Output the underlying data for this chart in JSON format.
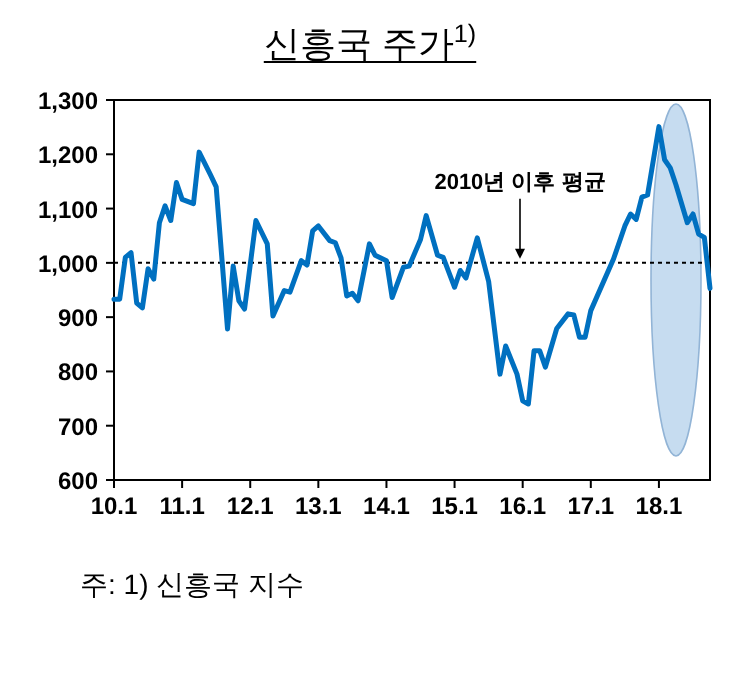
{
  "chart_data": {
    "type": "line",
    "title": "신흥국 주가$^{1)}$",
    "x": [
      "2010-01",
      "2010-02",
      "2010-03",
      "2010-04",
      "2010-05",
      "2010-06",
      "2010-07",
      "2010-08",
      "2010-09",
      "2010-10",
      "2010-11",
      "2010-12",
      "2011-01",
      "2011-03",
      "2011-04",
      "2011-06",
      "2011-07",
      "2011-09",
      "2011-10",
      "2011-11",
      "2011-12",
      "2012-02",
      "2012-04",
      "2012-05",
      "2012-07",
      "2012-08",
      "2012-10",
      "2012-11",
      "2012-12",
      "2013-01",
      "2013-03",
      "2013-04",
      "2013-05",
      "2013-06",
      "2013-07",
      "2013-08",
      "2013-10",
      "2013-11",
      "2014-01",
      "2014-02",
      "2014-04",
      "2014-05",
      "2014-07",
      "2014-08",
      "2014-10",
      "2014-11",
      "2015-01",
      "2015-02",
      "2015-03",
      "2015-05",
      "2015-07",
      "2015-09",
      "2015-10",
      "2015-12",
      "2016-01",
      "2016-02",
      "2016-03",
      "2016-04",
      "2016-05",
      "2016-07",
      "2016-09",
      "2016-10",
      "2016-11",
      "2016-12",
      "2017-01",
      "2017-05",
      "2017-07",
      "2017-08",
      "2017-09",
      "2017-10",
      "2017-11",
      "2018-01",
      "2018-02",
      "2018-03",
      "2018-04",
      "2018-06",
      "2018-07",
      "2018-08",
      "2018-09",
      "2018-10"
    ],
    "series": [
      {
        "color": "#0070c0",
        "values": [
          933,
          933,
          1010,
          1019,
          926,
          917,
          989,
          970,
          1074,
          1105,
          1078,
          1148,
          1117,
          1109,
          1204,
          1162,
          1140,
          878,
          994,
          930,
          915,
          1078,
          1035,
          902,
          949,
          946,
          1004,
          996,
          1059,
          1068,
          1041,
          1037,
          1009,
          939,
          944,
          930,
          1035,
          1014,
          1004,
          936,
          992,
          994,
          1043,
          1087,
          1014,
          1010,
          955,
          986,
          972,
          1046,
          966,
          795,
          847,
          795,
          746,
          740,
          838,
          838,
          808,
          879,
          906,
          904,
          863,
          863,
          912,
          1007,
          1068,
          1090,
          1080,
          1121,
          1125,
          1251,
          1190,
          1175,
          1144,
          1074,
          1090,
          1053,
          1047,
          953
        ]
      }
    ],
    "xlim": [
      "2010-01",
      "2018-10"
    ],
    "xticks": [
      {
        "value": "2010-01",
        "label": "10.1"
      },
      {
        "value": "2011-01",
        "label": "11.1"
      },
      {
        "value": "2012-01",
        "label": "12.1"
      },
      {
        "value": "2013-01",
        "label": "13.1"
      },
      {
        "value": "2014-01",
        "label": "14.1"
      },
      {
        "value": "2015-01",
        "label": "15.1"
      },
      {
        "value": "2016-01",
        "label": "16.1"
      },
      {
        "value": "2017-01",
        "label": "17.1"
      },
      {
        "value": "2018-01",
        "label": "18.1"
      }
    ],
    "ylim": [
      600,
      1300
    ],
    "yticks": [
      {
        "value": 600,
        "label": "600"
      },
      {
        "value": 700,
        "label": "700"
      },
      {
        "value": 800,
        "label": "800"
      },
      {
        "value": 900,
        "label": "900"
      },
      {
        "value": 1000,
        "label": "1,000"
      },
      {
        "value": 1100,
        "label": "1,100"
      },
      {
        "value": 1200,
        "label": "1,200"
      },
      {
        "value": 1300,
        "label": "1,300"
      }
    ],
    "ref_lines": [
      {
        "axis": "y",
        "value": 1000,
        "label": "2010년 이후 평균",
        "line_style": "dotted",
        "color": "#000000"
      }
    ],
    "annotations": [
      "주: 1) 신흥국 지수"
    ]
  }
}
